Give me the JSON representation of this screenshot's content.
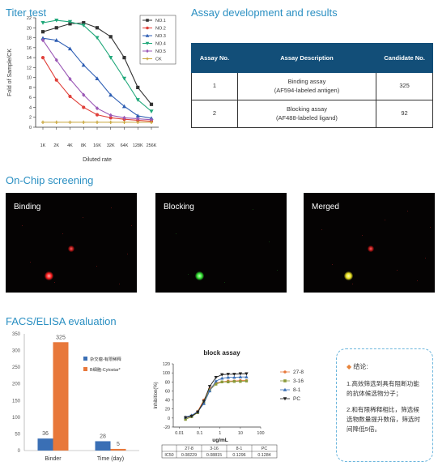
{
  "titer": {
    "title": "Titer test",
    "ylabel": "Fold of Sample/CK",
    "xlabel": "Diluted rate",
    "yticks": [
      "0",
      "2",
      "4",
      "6",
      "8",
      "10",
      "12",
      "14",
      "16",
      "18",
      "20",
      "22"
    ],
    "xticks": [
      "1K",
      "2K",
      "4K",
      "8K",
      "16K",
      "32K",
      "64K",
      "128K",
      "256K"
    ],
    "legend": [
      "NO.1",
      "NO.2",
      "NO.3",
      "NO.4",
      "NO.5",
      "CK"
    ]
  },
  "assay": {
    "title": "Assay development and results",
    "headers": [
      "Assay No.",
      "Assay Description",
      "Candidate No."
    ],
    "rows": [
      {
        "no": "1",
        "desc1": "Binding assay",
        "desc2": "(AF594-labeled antigen)",
        "cand": "325"
      },
      {
        "no": "2",
        "desc1": "Blocking assay",
        "desc2": "(AF488-labeled ligand)",
        "cand": "92"
      }
    ]
  },
  "onchip": {
    "title": "On-Chip screening",
    "panels": [
      "Binding",
      "Blocking",
      "Merged"
    ]
  },
  "facs": {
    "title": "FACS/ELISA evaluation",
    "legend": [
      "杂交瘤-有限稀释",
      "B细胞-Cytostar*"
    ],
    "yticks": [
      "0",
      "50",
      "100",
      "150",
      "200",
      "250",
      "300",
      "350"
    ],
    "categories": [
      "Binder",
      "Time (day)"
    ],
    "value_labels": [
      "36",
      "325",
      "28",
      "5"
    ]
  },
  "block": {
    "title": "block assay",
    "ylabel": "Inhibition(%)",
    "xlabel": "ug/mL",
    "yticks": [
      "-20",
      "0",
      "20",
      "40",
      "60",
      "80",
      "100",
      "120"
    ],
    "xticks": [
      "0.01",
      "0.1",
      "1",
      "10",
      "100"
    ],
    "legend": [
      "27-8",
      "3-16",
      "8-1",
      "PC"
    ],
    "ic50_label": "IC50",
    "ic50_headers": [
      "27-8",
      "3-16",
      "8-1",
      "PC"
    ],
    "ic50_values": [
      "0.08229",
      "0.08815",
      "0.1296",
      "0.1284"
    ]
  },
  "conclusion": {
    "title": "结论:",
    "p1": "1.高效筛选到具有阻断功能的抗体候选物分子；",
    "p2": "2.和有限稀释相比，筛选候选物数量提升数倍，筛选时间降低5倍。"
  },
  "chart_data": [
    {
      "type": "line",
      "title": "Titer test",
      "xlabel": "Diluted rate",
      "ylabel": "Fold of Sample/CK",
      "categories": [
        "1K",
        "2K",
        "4K",
        "8K",
        "16K",
        "32K",
        "64K",
        "128K",
        "256K"
      ],
      "ylim": [
        0,
        22
      ],
      "legend_position": "top-right",
      "series": [
        {
          "name": "NO.1",
          "color": "#333333",
          "marker": "square",
          "values": [
            19.2,
            20.0,
            20.8,
            21.0,
            20.0,
            18.2,
            14.0,
            8.0,
            4.6
          ]
        },
        {
          "name": "NO.2",
          "color": "#e0403a",
          "marker": "circle",
          "values": [
            14.0,
            9.5,
            6.2,
            4.0,
            2.5,
            1.9,
            1.6,
            1.4,
            1.2
          ]
        },
        {
          "name": "NO.3",
          "color": "#2f5fb4",
          "marker": "triangle",
          "values": [
            17.9,
            17.5,
            15.8,
            12.5,
            9.8,
            6.5,
            4.2,
            2.3,
            1.8
          ]
        },
        {
          "name": "NO.4",
          "color": "#20a87a",
          "marker": "triangle-down",
          "values": [
            21.0,
            21.5,
            21.2,
            20.5,
            18.0,
            14.0,
            9.8,
            5.5,
            3.2
          ]
        },
        {
          "name": "NO.5",
          "color": "#9b59b6",
          "marker": "diamond",
          "values": [
            17.5,
            13.5,
            9.7,
            6.5,
            3.8,
            2.4,
            1.9,
            1.7,
            1.5
          ]
        },
        {
          "name": "CK",
          "color": "#c8a53a",
          "marker": "plus",
          "values": [
            1.0,
            1.0,
            1.0,
            1.0,
            1.0,
            1.0,
            1.0,
            1.0,
            1.0
          ]
        }
      ]
    },
    {
      "type": "bar",
      "title": "FACS/ELISA evaluation",
      "categories": [
        "Binder",
        "Time (day)"
      ],
      "ylim": [
        0,
        350
      ],
      "legend_position": "top-right",
      "series": [
        {
          "name": "杂交瘤-有限稀释",
          "color": "#3a6fb5",
          "values": [
            36,
            28
          ]
        },
        {
          "name": "B细胞-Cytostar*",
          "color": "#e8783a",
          "values": [
            325,
            5
          ]
        }
      ]
    },
    {
      "type": "scatter",
      "title": "block assay",
      "xlabel": "ug/mL",
      "ylabel": "Inhibition(%)",
      "xscale": "log",
      "xlim": [
        0.005,
        100
      ],
      "ylim": [
        -20,
        120
      ],
      "legend_position": "right",
      "series": [
        {
          "name": "27-8",
          "color": "#e8783a",
          "x": [
            0.02,
            0.04,
            0.08,
            0.16,
            0.31,
            0.63,
            1.25,
            2.5,
            5,
            10,
            20
          ],
          "y": [
            0,
            5,
            15,
            40,
            65,
            78,
            80,
            82,
            82,
            83,
            83
          ]
        },
        {
          "name": "3-16",
          "color": "#8a9a3a",
          "x": [
            0.02,
            0.04,
            0.08,
            0.16,
            0.31,
            0.63,
            1.25,
            2.5,
            5,
            10,
            20
          ],
          "y": [
            -3,
            3,
            12,
            35,
            62,
            75,
            80,
            80,
            81,
            81,
            82
          ]
        },
        {
          "name": "8-1",
          "color": "#3a6fb5",
          "x": [
            0.02,
            0.04,
            0.08,
            0.16,
            0.31,
            0.63,
            1.25,
            2.5,
            5,
            10,
            20
          ],
          "y": [
            2,
            6,
            14,
            32,
            60,
            82,
            88,
            90,
            90,
            91,
            91
          ]
        },
        {
          "name": "PC",
          "color": "#222222",
          "x": [
            0.02,
            0.04,
            0.08,
            0.16,
            0.31,
            0.63,
            1.25,
            2.5,
            5,
            10,
            20
          ],
          "y": [
            1,
            4,
            13,
            37,
            70,
            90,
            96,
            97,
            97,
            98,
            98
          ]
        }
      ]
    }
  ]
}
